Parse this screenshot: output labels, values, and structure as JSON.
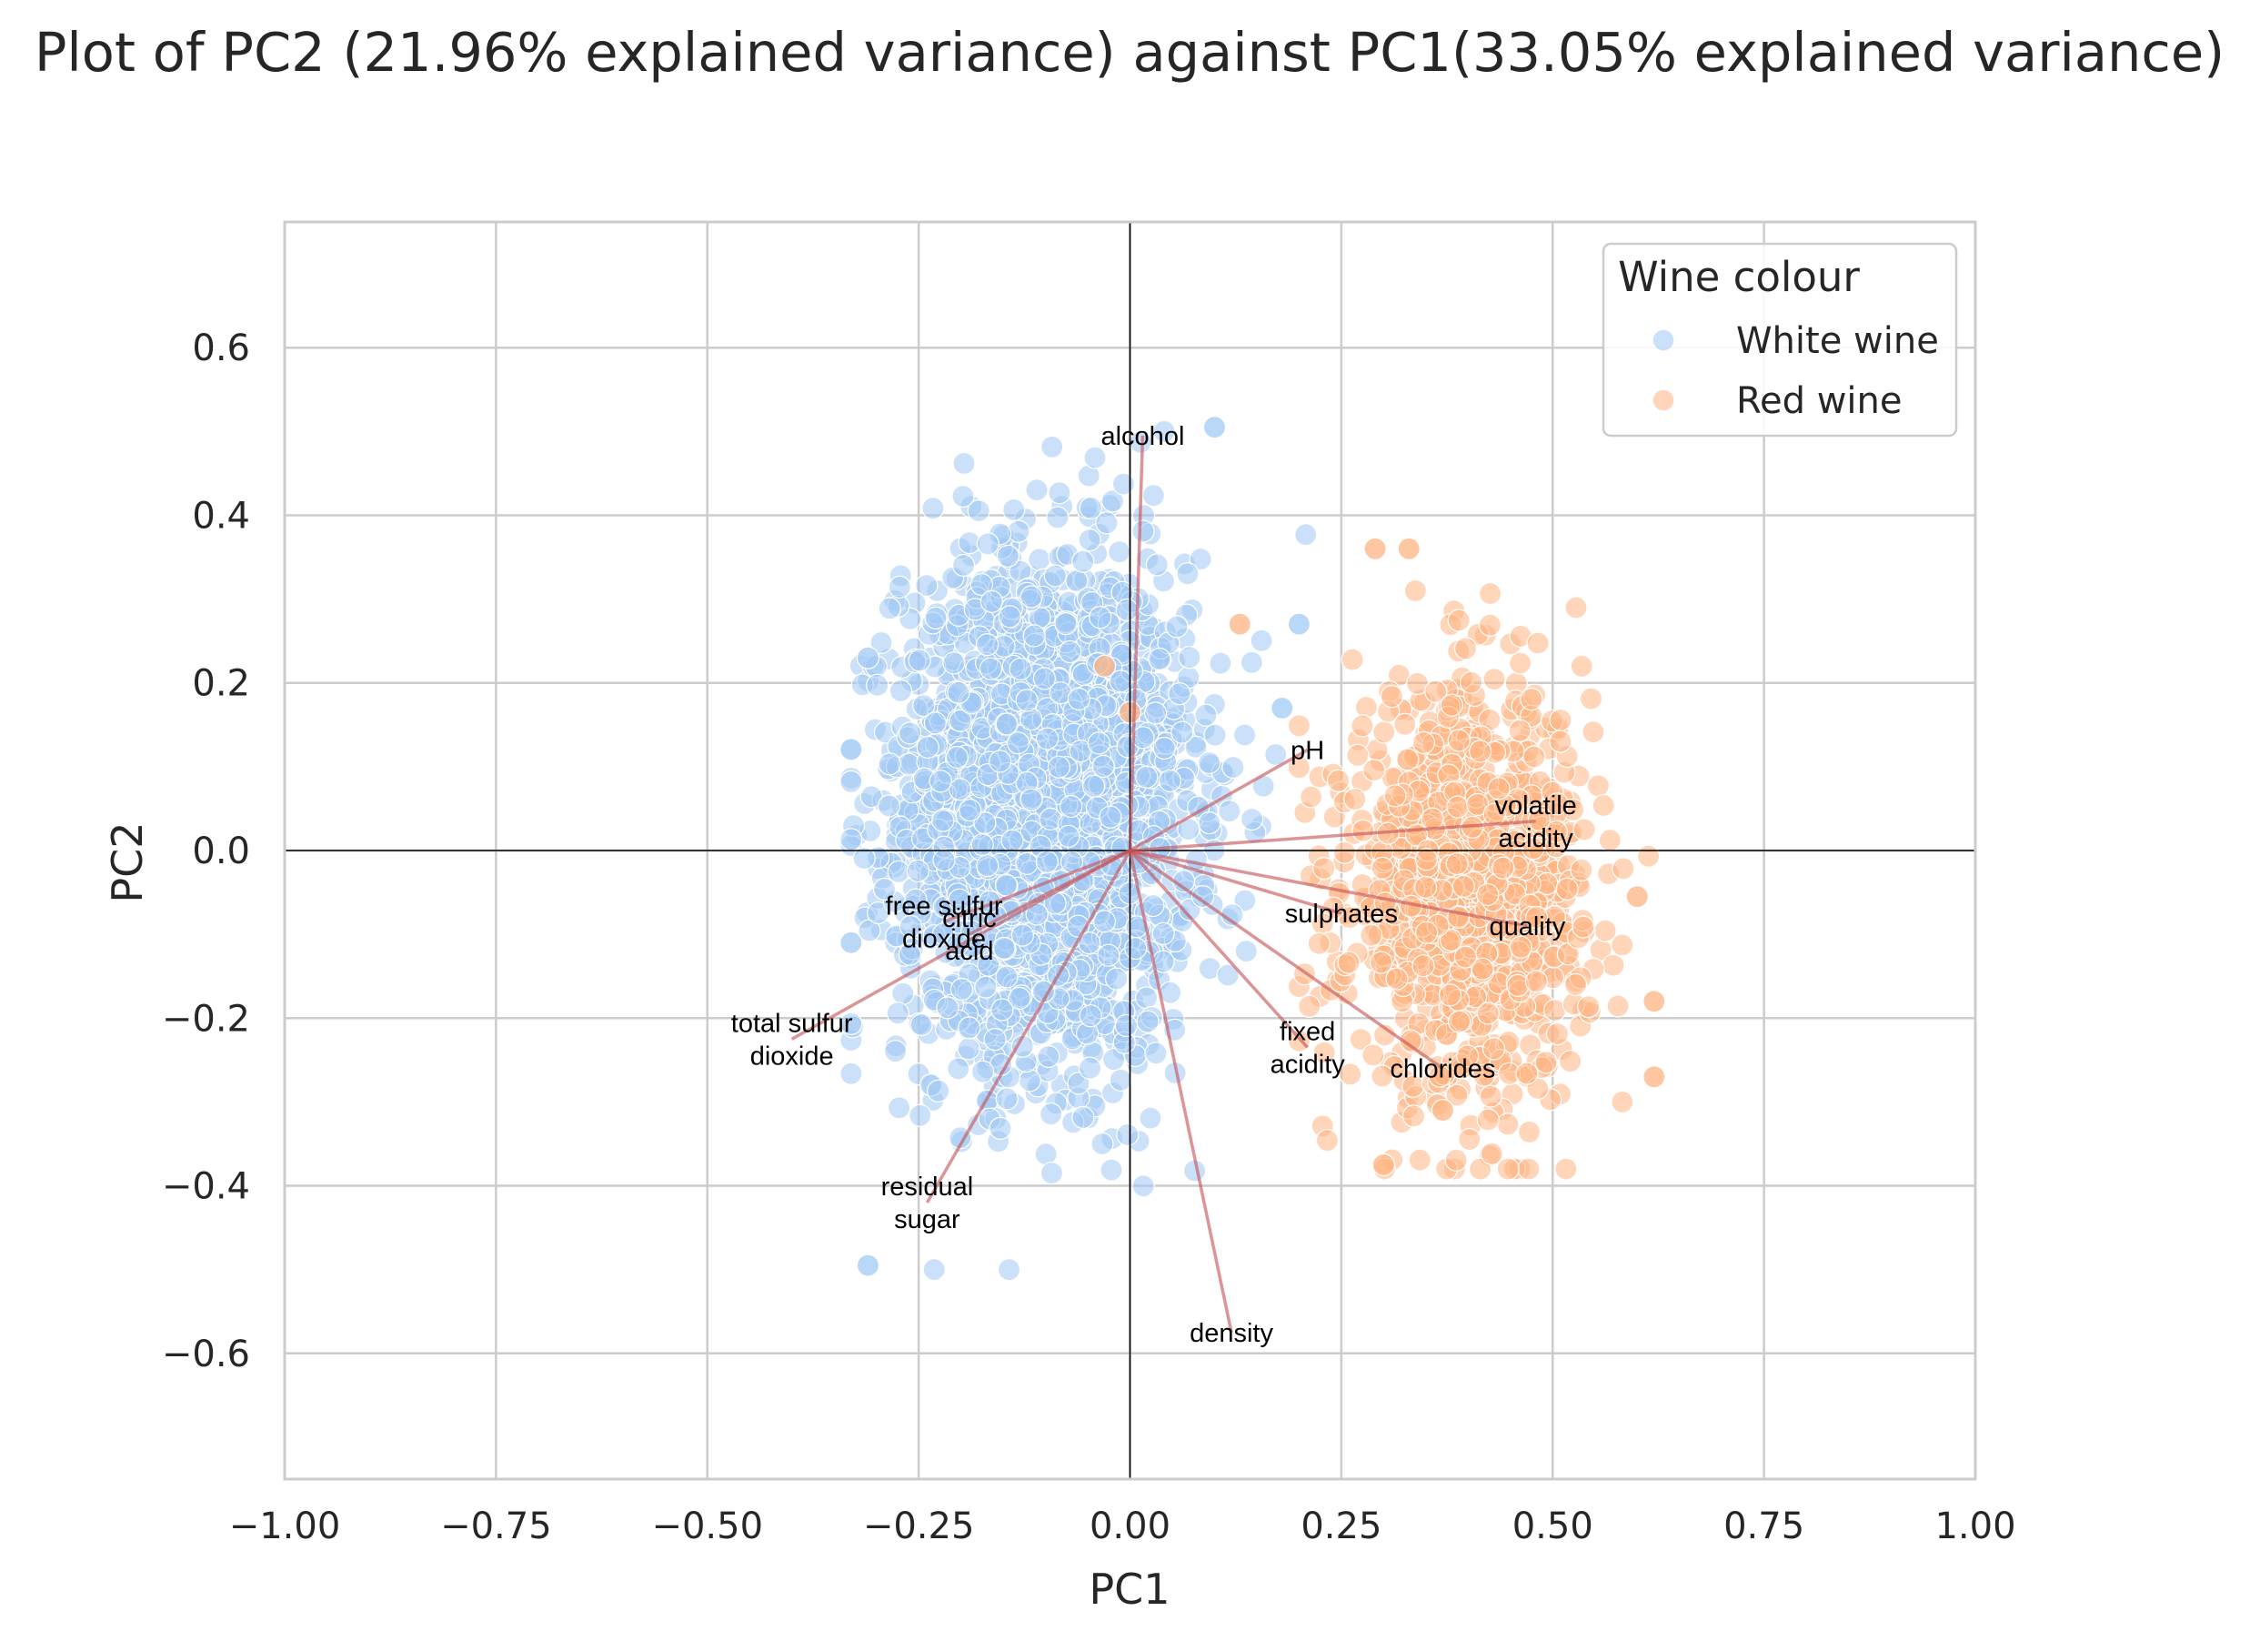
{
  "chart_data": {
    "type": "scatter",
    "title": "Plot of PC2 (21.96% explained variance) against PC1(33.05% explained variance)",
    "xlabel": "PC1",
    "ylabel": "PC2",
    "xlim": [
      -1.0,
      1.0
    ],
    "ylim": [
      -0.75,
      0.75
    ],
    "xticks": [
      "−1.00",
      "−0.75",
      "−0.50",
      "−0.25",
      "0.00",
      "0.25",
      "0.50",
      "0.75",
      "1.00"
    ],
    "xtick_values": [
      -1.0,
      -0.75,
      -0.5,
      -0.25,
      0.0,
      0.25,
      0.5,
      0.75,
      1.0
    ],
    "yticks": [
      "−0.6",
      "−0.4",
      "−0.2",
      "0.0",
      "0.2",
      "0.4",
      "0.6"
    ],
    "ytick_values": [
      -0.6,
      -0.4,
      -0.2,
      0.0,
      0.2,
      0.4,
      0.6
    ],
    "grid": true,
    "legend": {
      "title": "Wine colour",
      "placement": "top-right",
      "entries": [
        {
          "name": "White wine",
          "color": "#a1c9f4"
        },
        {
          "name": "Red wine",
          "color": "#ffb482"
        }
      ]
    },
    "series": [
      {
        "name": "White wine",
        "color": "#a1c9f4",
        "opacity": 0.55,
        "n_points": 4898,
        "cluster": {
          "center": [
            -0.1,
            0.05
          ],
          "spread": [
            0.085,
            0.15
          ],
          "x_range": [
            -0.33,
            0.22
          ],
          "y_range": [
            -0.5,
            0.5
          ]
        },
        "notable_points": [
          [
            0.1,
            0.505
          ],
          [
            -0.31,
            -0.495
          ],
          [
            -0.31,
            0.23
          ],
          [
            0.2,
            0.27
          ],
          [
            0.18,
            0.17
          ],
          [
            -0.33,
            -0.11
          ]
        ]
      },
      {
        "name": "Red wine",
        "color": "#ffb482",
        "opacity": 0.55,
        "n_points": 1599,
        "cluster": {
          "center": [
            0.4,
            -0.05
          ],
          "spread": [
            0.07,
            0.12
          ],
          "x_range": [
            0.2,
            0.63
          ],
          "y_range": [
            -0.38,
            0.36
          ]
        },
        "notable_points": [
          [
            0.33,
            0.36
          ],
          [
            0.29,
            0.36
          ],
          [
            0.3,
            -0.375
          ],
          [
            0.62,
            -0.27
          ],
          [
            0.62,
            -0.18
          ],
          [
            0.6,
            -0.055
          ],
          [
            0.37,
            -0.31
          ],
          [
            -0.03,
            0.22
          ],
          [
            0.0,
            0.165
          ],
          [
            0.13,
            0.27
          ]
        ]
      }
    ],
    "loadings": {
      "color": "#c44e52",
      "vectors": [
        {
          "label": [
            "alcohol"
          ],
          "x": 0.015,
          "y": 0.495
        },
        {
          "label": [
            "pH"
          ],
          "x": 0.21,
          "y": 0.12
        },
        {
          "label": [
            "volatile",
            "acidity"
          ],
          "x": 0.48,
          "y": 0.035
        },
        {
          "label": [
            "sulphates"
          ],
          "x": 0.25,
          "y": -0.075
        },
        {
          "label": [
            "quality"
          ],
          "x": 0.47,
          "y": -0.09
        },
        {
          "label": [
            "fixed",
            "acidity"
          ],
          "x": 0.21,
          "y": -0.235
        },
        {
          "label": [
            "chlorides"
          ],
          "x": 0.37,
          "y": -0.26
        },
        {
          "label": [
            "density"
          ],
          "x": 0.12,
          "y": -0.575
        },
        {
          "label": [
            "residual",
            "sugar"
          ],
          "x": -0.24,
          "y": -0.42
        },
        {
          "label": [
            "total sulfur",
            "dioxide"
          ],
          "x": -0.4,
          "y": -0.225
        },
        {
          "label": [
            "free sulfur",
            "dioxide"
          ],
          "x": -0.22,
          "y": -0.085
        },
        {
          "label": [
            "citric",
            "acid"
          ],
          "x": -0.19,
          "y": -0.1
        }
      ]
    },
    "axis_lines_at_zero": true
  }
}
